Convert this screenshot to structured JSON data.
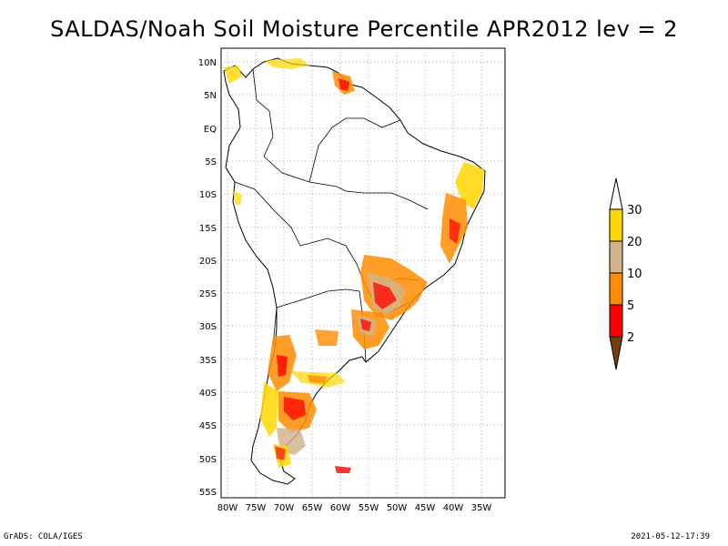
{
  "title": "SALDAS/Noah Soil Moisture Percentile APR2012 lev = 2",
  "footer": {
    "left": "GrADS: COLA/IGES",
    "right": "2021-05-12-17:39"
  },
  "map": {
    "lat_labels": [
      "10N",
      "5N",
      "EQ",
      "5S",
      "10S",
      "15S",
      "20S",
      "25S",
      "30S",
      "35S",
      "40S",
      "45S",
      "50S",
      "55S"
    ],
    "lon_labels": [
      "80W",
      "75W",
      "70W",
      "65W",
      "60W",
      "55W",
      "50W",
      "45W",
      "40W",
      "35W"
    ],
    "region": "South America"
  },
  "legend": {
    "labels": [
      "2",
      "5",
      "10",
      "20",
      "30"
    ],
    "colors": {
      "below_2": "#7a3b10",
      "2_to_5": "#ff0000",
      "5_to_10": "#ff8c00",
      "10_to_20": "#d2b48c",
      "20_to_30": "#ffd700",
      "above_30": "#ffffff"
    }
  }
}
